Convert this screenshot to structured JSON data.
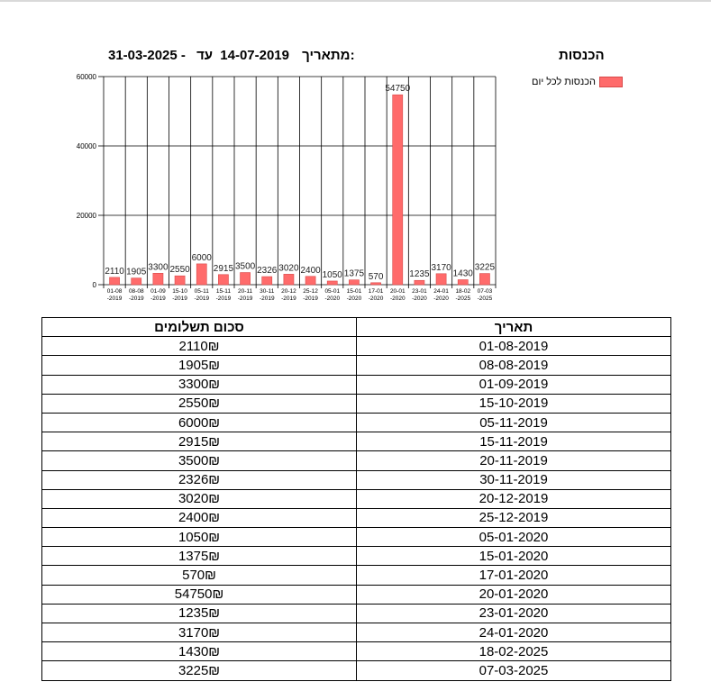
{
  "page": {
    "title": "הכנסות",
    "date_range": {
      "from_label": "מתאריך:",
      "from": "14-07-2019",
      "to_label": "עד",
      "dash": "-",
      "to": "31-03-2025"
    }
  },
  "legend": {
    "label": "הכנסות לכל יום",
    "color": "#ff6b6b"
  },
  "chart_data": {
    "type": "bar",
    "title": "",
    "xlabel": "",
    "ylabel": "",
    "ylim": [
      0,
      60000
    ],
    "yticks": [
      0,
      20000,
      40000,
      60000
    ],
    "grid": true,
    "legend_position": "top-right",
    "bar_color": "#ff6b6b",
    "categories": [
      "01-08-2019",
      "08-08-2019",
      "01-09-2019",
      "15-10-2019",
      "05-11-2019",
      "15-11-2019",
      "20-11-2019",
      "30-11-2019",
      "20-12-2019",
      "25-12-2019",
      "05-01-2020",
      "15-01-2020",
      "17-01-2020",
      "20-01-2020",
      "23-01-2020",
      "24-01-2020",
      "18-02-2025",
      "07-03-2025"
    ],
    "x_tick_lines": [
      [
        "01-08",
        "-2019"
      ],
      [
        "08-08",
        "-2019"
      ],
      [
        "01-09",
        "-2019"
      ],
      [
        "15-10",
        "-2019"
      ],
      [
        "05-11",
        "-2019"
      ],
      [
        "15-11",
        "-2019"
      ],
      [
        "20-11",
        "-2019"
      ],
      [
        "30-11",
        "-2019"
      ],
      [
        "20-12",
        "-2019"
      ],
      [
        "25-12",
        "-2019"
      ],
      [
        "05-01",
        "-2020"
      ],
      [
        "15-01",
        "-2020"
      ],
      [
        "17-01",
        "-2020"
      ],
      [
        "20-01",
        "-2020"
      ],
      [
        "23-01",
        "-2020"
      ],
      [
        "24-01",
        "-2020"
      ],
      [
        "18-02",
        "-2025"
      ],
      [
        "07-03",
        "-2025"
      ]
    ],
    "values": [
      2110,
      1905,
      3300,
      2550,
      6000,
      2915,
      3500,
      2326,
      3020,
      2400,
      1050,
      1375,
      570,
      54750,
      1235,
      3170,
      1430,
      3225
    ]
  },
  "table": {
    "headers": {
      "date": "תאריך",
      "amount": "סכום תשלומים"
    },
    "currency": "₪",
    "rows": [
      {
        "date": "01-08-2019",
        "amount": "2110₪"
      },
      {
        "date": "08-08-2019",
        "amount": "1905₪"
      },
      {
        "date": "01-09-2019",
        "amount": "3300₪"
      },
      {
        "date": "15-10-2019",
        "amount": "2550₪"
      },
      {
        "date": "05-11-2019",
        "amount": "6000₪"
      },
      {
        "date": "15-11-2019",
        "amount": "2915₪"
      },
      {
        "date": "20-11-2019",
        "amount": "3500₪"
      },
      {
        "date": "30-11-2019",
        "amount": "2326₪"
      },
      {
        "date": "20-12-2019",
        "amount": "3020₪"
      },
      {
        "date": "25-12-2019",
        "amount": "2400₪"
      },
      {
        "date": "05-01-2020",
        "amount": "1050₪"
      },
      {
        "date": "15-01-2020",
        "amount": "1375₪"
      },
      {
        "date": "17-01-2020",
        "amount": "570₪"
      },
      {
        "date": "20-01-2020",
        "amount": "54750₪"
      },
      {
        "date": "23-01-2020",
        "amount": "1235₪"
      },
      {
        "date": "24-01-2020",
        "amount": "3170₪"
      },
      {
        "date": "18-02-2025",
        "amount": "1430₪"
      },
      {
        "date": "07-03-2025",
        "amount": "3225₪"
      }
    ]
  }
}
